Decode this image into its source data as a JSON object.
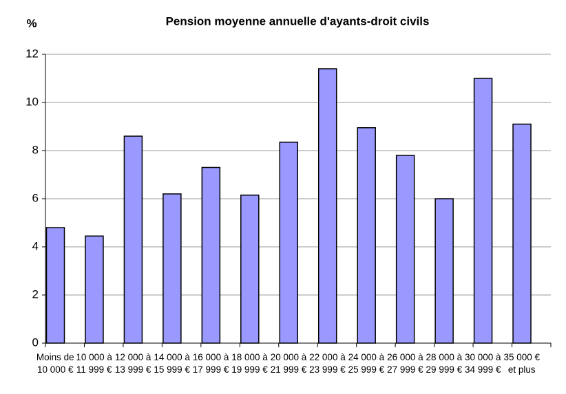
{
  "chart_data": {
    "type": "bar",
    "title": "Pension moyenne annuelle d'ayants-droit civils",
    "y_label": "%",
    "categories": [
      "Moins de 10 000 €",
      "10 000 à 11 999 €",
      "12 000 à 13 999 €",
      "14 000 à 15 999 €",
      "16 000 à 17 999 €",
      "18 000 à 19 999 €",
      "20 000 à 21 999 €",
      "22 000 à 23 999 €",
      "24 000 à 25 999 €",
      "26 000 à 27 999 €",
      "28 000 à 29 999 €",
      "30 000 à 34 999 €",
      "35 000 € et plus"
    ],
    "values": [
      4.8,
      4.45,
      8.6,
      6.2,
      7.3,
      6.15,
      8.35,
      11.4,
      8.95,
      7.8,
      6.0,
      11.0,
      9.1
    ],
    "color": "#9999ff",
    "ylim": [
      0,
      12
    ],
    "yticks": [
      0,
      2,
      4,
      6,
      8,
      10,
      12
    ],
    "grid": true
  }
}
